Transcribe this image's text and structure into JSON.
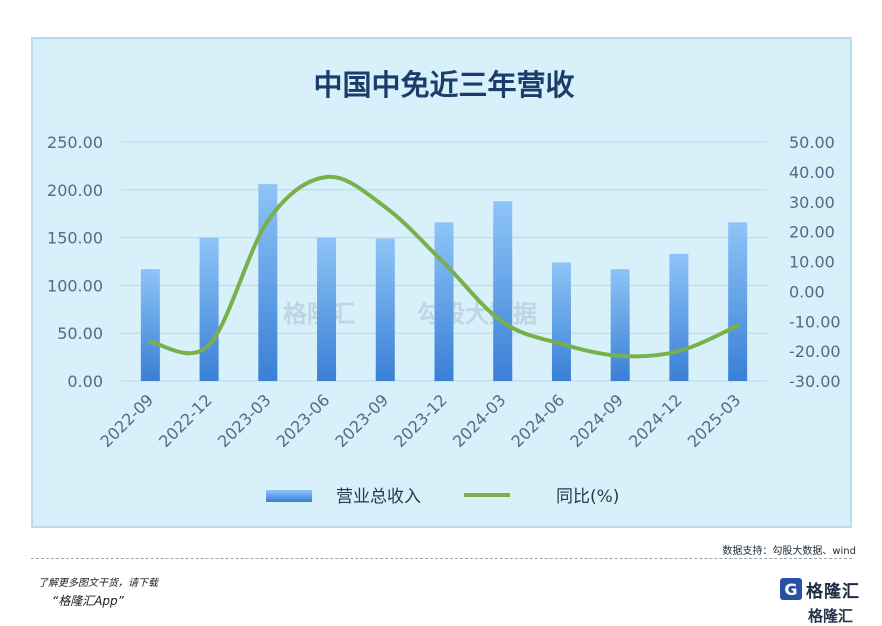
{
  "chart_data": {
    "type": "bar",
    "title": "中国中免近三年营收",
    "categories": [
      "2022-09",
      "2022-12",
      "2023-03",
      "2023-06",
      "2023-09",
      "2023-12",
      "2024-03",
      "2024-06",
      "2024-09",
      "2024-12",
      "2025-03"
    ],
    "series": [
      {
        "name": "营业总收入",
        "type": "bar",
        "axis": "left",
        "values": [
          117,
          150,
          206,
          150,
          149,
          166,
          188,
          124,
          117,
          133,
          166
        ]
      },
      {
        "name": "同比(%)",
        "type": "line",
        "axis": "right",
        "values": [
          -16.9,
          -17.9,
          23.6,
          38.3,
          28.2,
          9.5,
          -10.3,
          -17.6,
          -21.6,
          -20.0,
          -11.5
        ]
      }
    ],
    "y_left": {
      "range": [
        0,
        250
      ],
      "ticks": [
        "0.00",
        "50.00",
        "100.00",
        "150.00",
        "200.00",
        "250.00"
      ]
    },
    "y_right": {
      "range": [
        -30,
        50
      ],
      "ticks": [
        "-30.00",
        "-20.00",
        "-10.00",
        "0.00",
        "10.00",
        "20.00",
        "30.00",
        "40.00",
        "50.00"
      ]
    },
    "grid": true,
    "legend_position": "bottom",
    "colors": {
      "bar_top": "#8ec5f7",
      "bar_bottom": "#3a7fd6",
      "line": "#78b04a",
      "title": "#1b3d6b",
      "axis_text": "#4e6d86",
      "grid": "#b6d8ea"
    }
  },
  "footer": {
    "source": "数据支持：勾股大数据、wind",
    "promo_line1": "了解更多图文干货，请下载",
    "promo_line2": "“格隆汇App”",
    "brand_mark": "G",
    "brand_name": "格隆汇",
    "brand_sub": "格隆汇"
  },
  "watermark": {
    "brand": "格隆汇",
    "site": "勾股大数据"
  }
}
